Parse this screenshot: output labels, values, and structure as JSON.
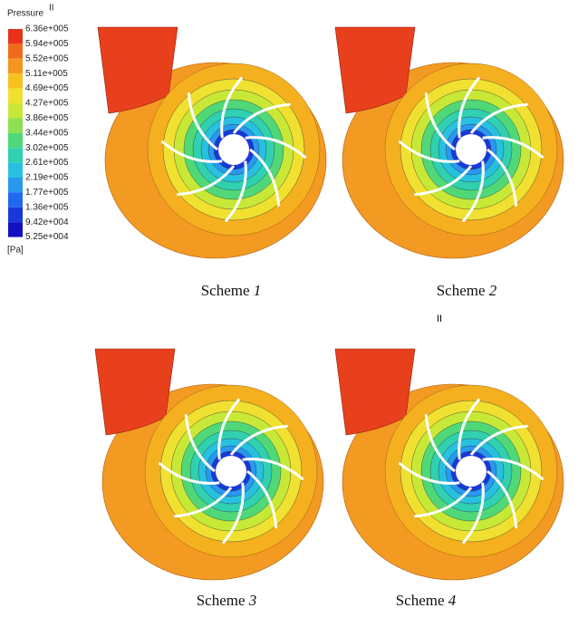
{
  "legend": {
    "title": "Pressure",
    "title_mark": "II",
    "unit": "[Pa]",
    "labels": [
      "6.36e+005",
      "5.94e+005",
      "5.52e+005",
      "5.11e+005",
      "4.69e+005",
      "4.27e+005",
      "3.86e+005",
      "3.44e+005",
      "3.02e+005",
      "2.61e+005",
      "2.19e+005",
      "1.77e+005",
      "1.36e+005",
      "9.42e+004",
      "5.25e+004"
    ],
    "colors": [
      "#e8321c",
      "#f06a1c",
      "#f5961e",
      "#f7c020",
      "#f0e030",
      "#c8e838",
      "#8ee050",
      "#50d878",
      "#30d0b0",
      "#28c0e0",
      "#2898f0",
      "#2068f0",
      "#1838d8",
      "#1010c0"
    ]
  },
  "captions": [
    {
      "text": "Scheme",
      "number": "1"
    },
    {
      "text": "Scheme",
      "number": "2"
    },
    {
      "text": "Scheme",
      "number": "3"
    },
    {
      "text": "Scheme",
      "number": "4"
    }
  ],
  "stray_mark": "II"
}
